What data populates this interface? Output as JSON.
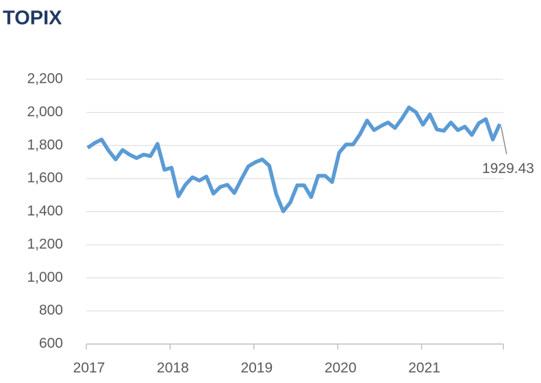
{
  "chart_data": {
    "type": "line",
    "title": "TOPIX",
    "categories": [
      "2017",
      null,
      null,
      null,
      null,
      null,
      null,
      null,
      null,
      null,
      null,
      null,
      "2018",
      null,
      null,
      null,
      null,
      null,
      null,
      null,
      null,
      null,
      null,
      null,
      "2019",
      null,
      null,
      null,
      null,
      null,
      null,
      null,
      null,
      null,
      null,
      null,
      "2020",
      null,
      null,
      null,
      null,
      null,
      null,
      null,
      null,
      null,
      null,
      null,
      "2021",
      null,
      null,
      null,
      null,
      null,
      null,
      null,
      null,
      null,
      null,
      null
    ],
    "series": [
      {
        "color": "#5b9bd5",
        "values": [
          1786,
          1815,
          1836,
          1769,
          1716,
          1773,
          1745,
          1724,
          1745,
          1736,
          1810,
          1653,
          1666,
          1493,
          1563,
          1608,
          1588,
          1612,
          1509,
          1550,
          1563,
          1513,
          1596,
          1674,
          1699,
          1716,
          1678,
          1505,
          1402,
          1455,
          1559,
          1559,
          1488,
          1617,
          1617,
          1579,
          1757,
          1806,
          1806,
          1869,
          1951,
          1893,
          1918,
          1939,
          1906,
          1963,
          2030,
          2001,
          1926,
          1988,
          1897,
          1889,
          1939,
          1893,
          1914,
          1864,
          1935,
          1960,
          1836,
          1929.43
        ]
      }
    ],
    "ylim": [
      600,
      2200
    ],
    "yticks": [
      600,
      800,
      {
        "value": 1000,
        "label": "1,000"
      },
      {
        "value": 1200,
        "label": "1,200"
      },
      {
        "value": 1400,
        "label": "1,400"
      },
      {
        "value": 1600,
        "label": "1,600"
      },
      {
        "value": 1800,
        "label": "1,800"
      },
      {
        "value": 2000,
        "label": "2,000"
      },
      {
        "value": 2200,
        "label": "2,200"
      }
    ],
    "grid": true
  }
}
